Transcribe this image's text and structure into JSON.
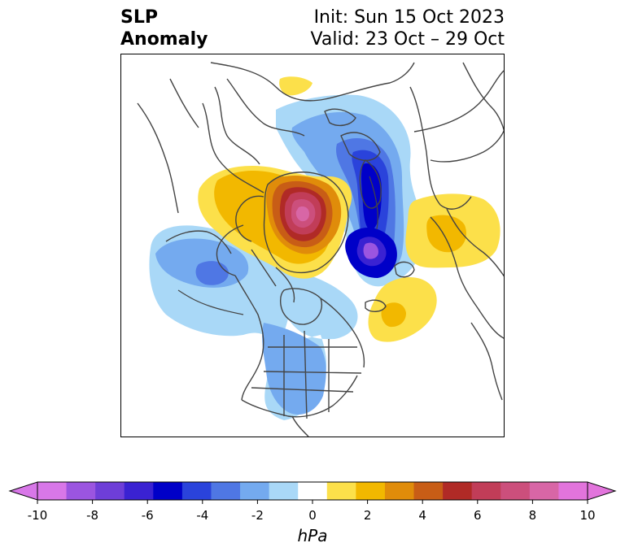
{
  "title": {
    "variable": "SLP",
    "subtitle": "Anomaly",
    "init": "Init: Sun 15 Oct 2023",
    "valid": "Valid: 23 Oct – 29 Oct"
  },
  "map": {
    "projection": "north-polar-stereographic",
    "coastline_color": "#444444",
    "features": [
      {
        "name": "high-anomaly-greenland",
        "sign": "positive",
        "peak_hpa": 10
      },
      {
        "name": "low-anomaly-barents-kara",
        "sign": "negative",
        "peak_hpa": -9
      },
      {
        "name": "high-anomaly-siberia",
        "sign": "positive",
        "peak_hpa": 3
      },
      {
        "name": "high-anomaly-north-pacific",
        "sign": "positive",
        "peak_hpa": 3
      },
      {
        "name": "low-anomaly-north-atlantic",
        "sign": "negative",
        "peak_hpa": -4
      },
      {
        "name": "low-anomaly-north-america",
        "sign": "negative",
        "peak_hpa": -3
      }
    ]
  },
  "colorbar": {
    "unit_label": "hPa",
    "tick_labels": [
      "-10",
      "-8",
      "-6",
      "-4",
      "-2",
      "0",
      "2",
      "4",
      "6",
      "8",
      "10"
    ],
    "levels": [
      -10,
      -9,
      -8,
      -7,
      -6,
      -5,
      -4,
      -3,
      -2,
      -1,
      1,
      2,
      3,
      4,
      5,
      6,
      7,
      8,
      9,
      10
    ],
    "colors": [
      "#d877e8",
      "#9b55e0",
      "#6e3ed8",
      "#3a22d2",
      "#0000c8",
      "#2a43db",
      "#4f77e4",
      "#74aaef",
      "#a9d8f7",
      "#ffffff",
      "#fce04a",
      "#f2b800",
      "#e08c0a",
      "#c85d16",
      "#b02a26",
      "#c13d58",
      "#cc4f7c",
      "#d866a6",
      "#e274dc"
    ],
    "extend_min_color": "#d877e8",
    "extend_max_color": "#e274dc"
  }
}
